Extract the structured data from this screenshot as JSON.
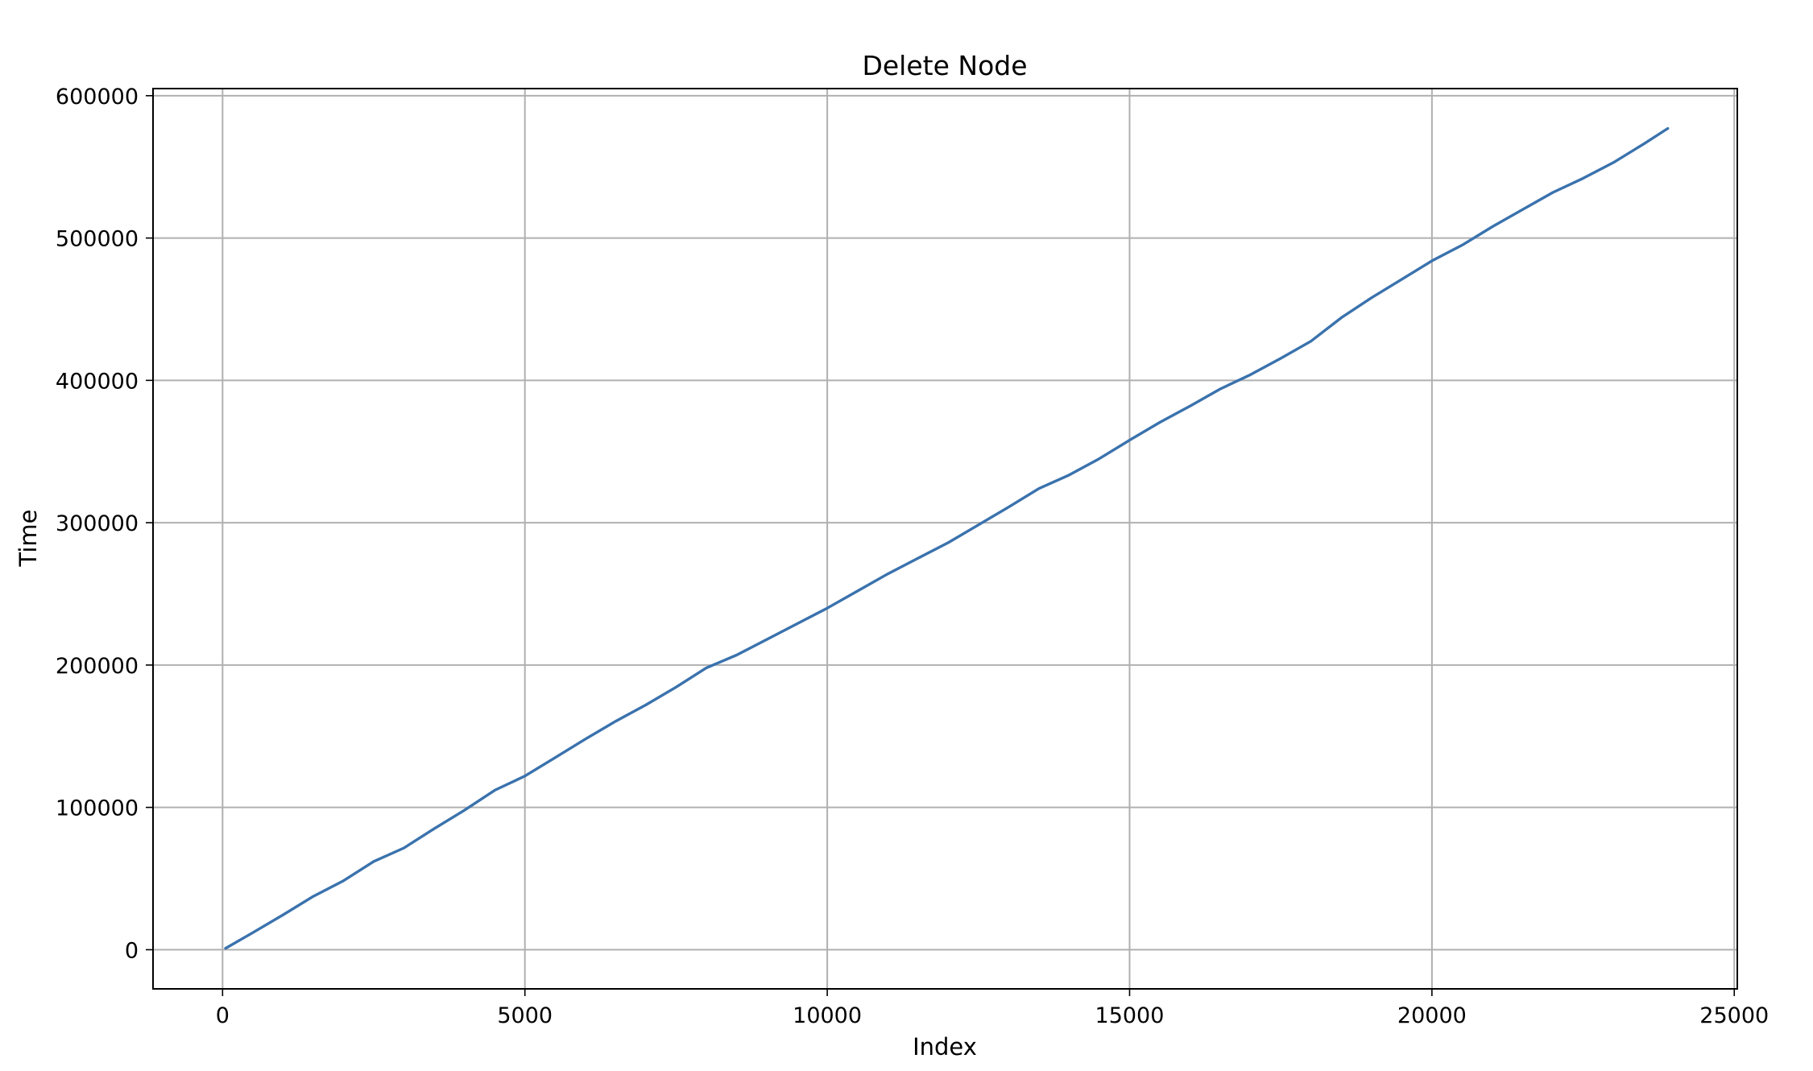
{
  "chart_data": {
    "type": "line",
    "title": "Delete Node",
    "xlabel": "Index",
    "ylabel": "Time",
    "xlim": [
      -1150,
      25050
    ],
    "ylim": [
      -27500,
      605000
    ],
    "xticks": [
      0,
      5000,
      10000,
      15000,
      20000,
      25000
    ],
    "xtick_labels": [
      "0",
      "5000",
      "10000",
      "15000",
      "20000",
      "25000"
    ],
    "yticks": [
      0,
      100000,
      200000,
      300000,
      400000,
      500000,
      600000
    ],
    "ytick_labels": [
      "0",
      "100000",
      "200000",
      "300000",
      "400000",
      "500000",
      "600000"
    ],
    "grid": true,
    "legend": "none",
    "series": [
      {
        "color": "#3a72ad",
        "x": [
          50,
          500,
          1000,
          1500,
          2000,
          2500,
          3000,
          3500,
          4000,
          4500,
          5000,
          5500,
          6000,
          6500,
          7000,
          7500,
          8000,
          8500,
          9000,
          9500,
          10000,
          10500,
          11000,
          11500,
          12000,
          12500,
          13000,
          13500,
          14000,
          14500,
          15000,
          15500,
          16000,
          16500,
          17000,
          17500,
          18000,
          18500,
          19000,
          19500,
          20000,
          20500,
          21000,
          21500,
          22000,
          22500,
          23000,
          23500,
          23900
        ],
        "y": [
          1000,
          12000,
          24500,
          37500,
          48500,
          62000,
          71500,
          85000,
          98000,
          112000,
          122000,
          135000,
          148000,
          160500,
          172000,
          184500,
          198000,
          207000,
          218000,
          229000,
          240000,
          252000,
          264000,
          275000,
          286000,
          298500,
          311000,
          324000,
          333500,
          345000,
          358000,
          370500,
          382000,
          394000,
          404000,
          415500,
          427500,
          444000,
          458000,
          471000,
          484000,
          495000,
          508000,
          520000,
          532000,
          542000,
          553000,
          566000,
          577000
        ]
      }
    ]
  }
}
